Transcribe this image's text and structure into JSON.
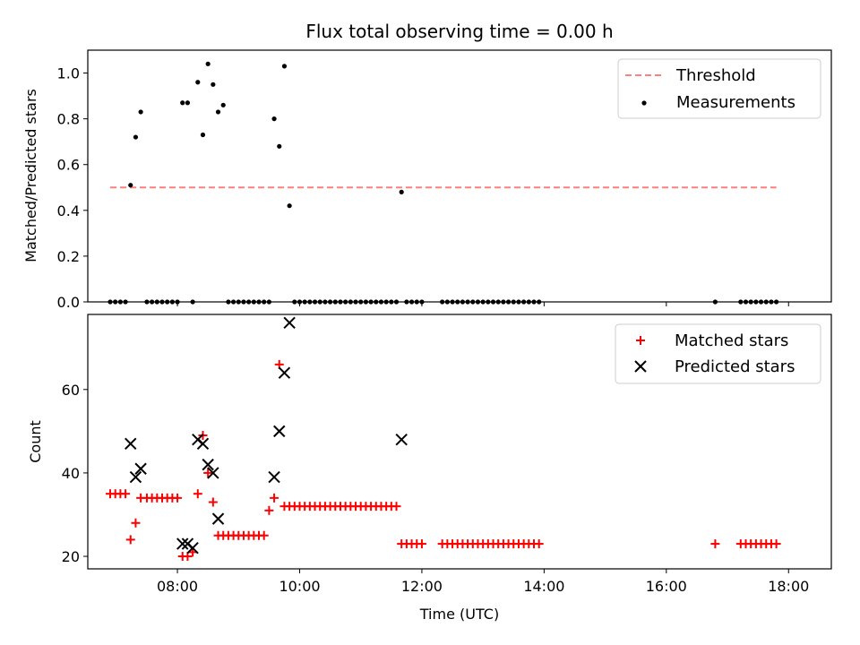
{
  "chart_data": [
    {
      "type": "scatter",
      "title": "Flux total observing time = 0.00 h",
      "xlabel": "",
      "ylabel": "Matched/Predicted stars",
      "xlim": [
        "06:32",
        "18:42"
      ],
      "ylim": [
        0,
        1.1
      ],
      "yticks": [
        "0.0",
        "0.2",
        "0.4",
        "0.6",
        "0.8",
        "1.0"
      ],
      "xticks": [
        "08:00",
        "10:00",
        "12:00",
        "14:00",
        "16:00",
        "18:00"
      ],
      "legend_position": "top-right",
      "threshold": {
        "name": "Threshold",
        "value": 0.5,
        "x_start": "06:54",
        "x_end": "17:48",
        "color": "#ff7f7f"
      },
      "series": [
        {
          "name": "Measurements",
          "color": "#000000",
          "marker": "dot",
          "points": [
            [
              "06:54",
              0.0
            ],
            [
              "06:59",
              0.0
            ],
            [
              "07:04",
              0.0
            ],
            [
              "07:09",
              0.0
            ],
            [
              "07:14",
              0.51
            ],
            [
              "07:19",
              0.72
            ],
            [
              "07:24",
              0.83
            ],
            [
              "07:30",
              0.0
            ],
            [
              "07:35",
              0.0
            ],
            [
              "07:40",
              0.0
            ],
            [
              "07:45",
              0.0
            ],
            [
              "07:50",
              0.0
            ],
            [
              "07:55",
              0.0
            ],
            [
              "08:00",
              0.0
            ],
            [
              "08:05",
              0.87
            ],
            [
              "08:10",
              0.87
            ],
            [
              "08:15",
              0.0
            ],
            [
              "08:20",
              0.96
            ],
            [
              "08:25",
              0.73
            ],
            [
              "08:30",
              1.04
            ],
            [
              "08:35",
              0.95
            ],
            [
              "08:40",
              0.83
            ],
            [
              "08:45",
              0.86
            ],
            [
              "08:50",
              0.0
            ],
            [
              "08:55",
              0.0
            ],
            [
              "09:00",
              0.0
            ],
            [
              "09:05",
              0.0
            ],
            [
              "09:10",
              0.0
            ],
            [
              "09:15",
              0.0
            ],
            [
              "09:20",
              0.0
            ],
            [
              "09:25",
              0.0
            ],
            [
              "09:30",
              0.0
            ],
            [
              "09:35",
              0.8
            ],
            [
              "09:40",
              0.68
            ],
            [
              "09:45",
              1.03
            ],
            [
              "09:50",
              0.42
            ],
            [
              "09:55",
              0.0
            ],
            [
              "10:00",
              0.0
            ],
            [
              "10:05",
              0.0
            ],
            [
              "10:10",
              0.0
            ],
            [
              "10:15",
              0.0
            ],
            [
              "10:20",
              0.0
            ],
            [
              "10:25",
              0.0
            ],
            [
              "10:30",
              0.0
            ],
            [
              "10:35",
              0.0
            ],
            [
              "10:40",
              0.0
            ],
            [
              "10:45",
              0.0
            ],
            [
              "10:50",
              0.0
            ],
            [
              "10:55",
              0.0
            ],
            [
              "11:00",
              0.0
            ],
            [
              "11:05",
              0.0
            ],
            [
              "11:10",
              0.0
            ],
            [
              "11:15",
              0.0
            ],
            [
              "11:20",
              0.0
            ],
            [
              "11:25",
              0.0
            ],
            [
              "11:30",
              0.0
            ],
            [
              "11:35",
              0.0
            ],
            [
              "11:40",
              0.48
            ],
            [
              "11:45",
              0.0
            ],
            [
              "11:50",
              0.0
            ],
            [
              "11:55",
              0.0
            ],
            [
              "12:00",
              0.0
            ],
            [
              "12:20",
              0.0
            ],
            [
              "12:25",
              0.0
            ],
            [
              "12:30",
              0.0
            ],
            [
              "12:35",
              0.0
            ],
            [
              "12:40",
              0.0
            ],
            [
              "12:45",
              0.0
            ],
            [
              "12:50",
              0.0
            ],
            [
              "12:55",
              0.0
            ],
            [
              "13:00",
              0.0
            ],
            [
              "13:05",
              0.0
            ],
            [
              "13:10",
              0.0
            ],
            [
              "13:15",
              0.0
            ],
            [
              "13:20",
              0.0
            ],
            [
              "13:25",
              0.0
            ],
            [
              "13:30",
              0.0
            ],
            [
              "13:35",
              0.0
            ],
            [
              "13:40",
              0.0
            ],
            [
              "13:45",
              0.0
            ],
            [
              "13:50",
              0.0
            ],
            [
              "13:55",
              0.0
            ],
            [
              "16:48",
              0.0
            ],
            [
              "17:13",
              0.0
            ],
            [
              "17:18",
              0.0
            ],
            [
              "17:23",
              0.0
            ],
            [
              "17:28",
              0.0
            ],
            [
              "17:33",
              0.0
            ],
            [
              "17:38",
              0.0
            ],
            [
              "17:43",
              0.0
            ],
            [
              "17:48",
              0.0
            ]
          ]
        }
      ]
    },
    {
      "type": "scatter",
      "title": "",
      "xlabel": "Time (UTC)",
      "ylabel": "Count",
      "xlim": [
        "06:32",
        "18:42"
      ],
      "ylim": [
        17,
        78
      ],
      "yticks": [
        "20",
        "40",
        "60"
      ],
      "xticks": [
        "08:00",
        "10:00",
        "12:00",
        "14:00",
        "16:00",
        "18:00"
      ],
      "legend_position": "top-right",
      "series": [
        {
          "name": "Matched stars",
          "color": "#ff0000",
          "marker": "plus",
          "points": [
            [
              "06:54",
              35
            ],
            [
              "06:59",
              35
            ],
            [
              "07:04",
              35
            ],
            [
              "07:09",
              35
            ],
            [
              "07:14",
              24
            ],
            [
              "07:19",
              28
            ],
            [
              "07:24",
              34
            ],
            [
              "07:30",
              34
            ],
            [
              "07:35",
              34
            ],
            [
              "07:40",
              34
            ],
            [
              "07:45",
              34
            ],
            [
              "07:50",
              34
            ],
            [
              "07:55",
              34
            ],
            [
              "08:00",
              34
            ],
            [
              "08:05",
              20
            ],
            [
              "08:10",
              20
            ],
            [
              "08:15",
              21
            ],
            [
              "08:20",
              35
            ],
            [
              "08:25",
              49
            ],
            [
              "08:30",
              40
            ],
            [
              "08:35",
              33
            ],
            [
              "08:40",
              25
            ],
            [
              "08:45",
              25
            ],
            [
              "08:50",
              25
            ],
            [
              "08:55",
              25
            ],
            [
              "09:00",
              25
            ],
            [
              "09:05",
              25
            ],
            [
              "09:10",
              25
            ],
            [
              "09:15",
              25
            ],
            [
              "09:20",
              25
            ],
            [
              "09:25",
              25
            ],
            [
              "09:30",
              31
            ],
            [
              "09:35",
              34
            ],
            [
              "09:40",
              66
            ],
            [
              "09:45",
              32
            ],
            [
              "09:50",
              32
            ],
            [
              "09:55",
              32
            ],
            [
              "10:00",
              32
            ],
            [
              "10:05",
              32
            ],
            [
              "10:10",
              32
            ],
            [
              "10:15",
              32
            ],
            [
              "10:20",
              32
            ],
            [
              "10:25",
              32
            ],
            [
              "10:30",
              32
            ],
            [
              "10:35",
              32
            ],
            [
              "10:40",
              32
            ],
            [
              "10:45",
              32
            ],
            [
              "10:50",
              32
            ],
            [
              "10:55",
              32
            ],
            [
              "11:00",
              32
            ],
            [
              "11:05",
              32
            ],
            [
              "11:10",
              32
            ],
            [
              "11:15",
              32
            ],
            [
              "11:20",
              32
            ],
            [
              "11:25",
              32
            ],
            [
              "11:30",
              32
            ],
            [
              "11:35",
              32
            ],
            [
              "11:40",
              23
            ],
            [
              "11:45",
              23
            ],
            [
              "11:50",
              23
            ],
            [
              "11:55",
              23
            ],
            [
              "12:00",
              23
            ],
            [
              "12:20",
              23
            ],
            [
              "12:25",
              23
            ],
            [
              "12:30",
              23
            ],
            [
              "12:35",
              23
            ],
            [
              "12:40",
              23
            ],
            [
              "12:45",
              23
            ],
            [
              "12:50",
              23
            ],
            [
              "12:55",
              23
            ],
            [
              "13:00",
              23
            ],
            [
              "13:05",
              23
            ],
            [
              "13:10",
              23
            ],
            [
              "13:15",
              23
            ],
            [
              "13:20",
              23
            ],
            [
              "13:25",
              23
            ],
            [
              "13:30",
              23
            ],
            [
              "13:35",
              23
            ],
            [
              "13:40",
              23
            ],
            [
              "13:45",
              23
            ],
            [
              "13:50",
              23
            ],
            [
              "13:55",
              23
            ],
            [
              "16:48",
              23
            ],
            [
              "17:13",
              23
            ],
            [
              "17:18",
              23
            ],
            [
              "17:23",
              23
            ],
            [
              "17:28",
              23
            ],
            [
              "17:33",
              23
            ],
            [
              "17:38",
              23
            ],
            [
              "17:43",
              23
            ],
            [
              "17:48",
              23
            ]
          ]
        },
        {
          "name": "Predicted stars",
          "color": "#000000",
          "marker": "x",
          "points": [
            [
              "07:14",
              47
            ],
            [
              "07:19",
              39
            ],
            [
              "07:24",
              41
            ],
            [
              "08:05",
              23
            ],
            [
              "08:10",
              23
            ],
            [
              "08:15",
              22
            ],
            [
              "08:20",
              48
            ],
            [
              "08:25",
              47
            ],
            [
              "08:30",
              42
            ],
            [
              "08:35",
              40
            ],
            [
              "08:40",
              29
            ],
            [
              "09:35",
              39
            ],
            [
              "09:40",
              50
            ],
            [
              "09:45",
              64
            ],
            [
              "09:50",
              76
            ],
            [
              "11:40",
              48
            ]
          ]
        }
      ]
    }
  ]
}
